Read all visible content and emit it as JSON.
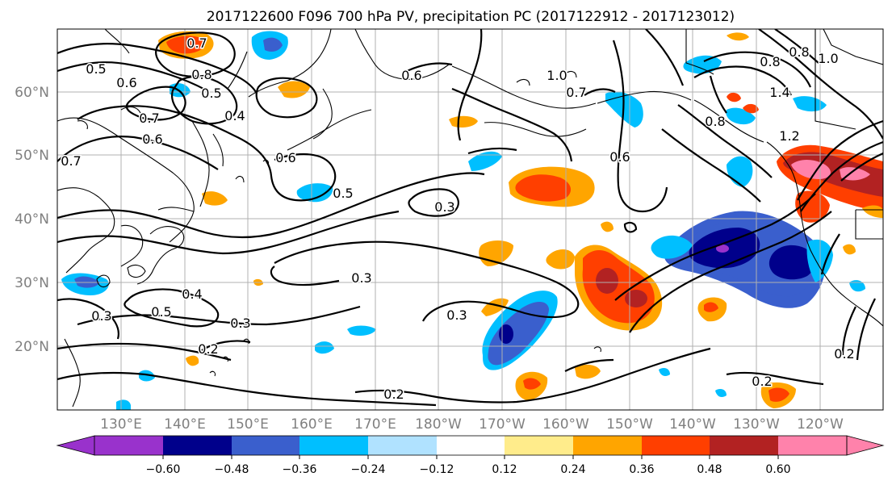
{
  "title": "2017122600 F096 700 hPa PV, precipitation PC (2017122912 - 2017123012)",
  "map": {
    "lat_labels": [
      "60°N",
      "50°N",
      "40°N",
      "30°N",
      "20°N"
    ],
    "lon_labels": [
      "130°E",
      "140°E",
      "150°E",
      "160°E",
      "170°E",
      "180°W",
      "170°W",
      "160°W",
      "150°W",
      "140°W",
      "130°W",
      "120°W"
    ],
    "gridlines": true
  },
  "colorbar": {
    "tick_labels": [
      "−0.60",
      "−0.48",
      "−0.36",
      "−0.24",
      "−0.12",
      "0.12",
      "0.24",
      "0.36",
      "0.48",
      "0.60"
    ],
    "colors": [
      "#9932CC",
      "#00008B",
      "#3A5FCD",
      "#00BFFF",
      "#B0E2FF",
      "#FFFFFF",
      "#FFEC8B",
      "#FFA500",
      "#FF3F00",
      "#B22222",
      "#FF82AB"
    ],
    "extend": "both"
  },
  "contour_labels": [
    {
      "text": "0.7"
    },
    {
      "text": "0.5"
    },
    {
      "text": "0.6"
    },
    {
      "text": "0.8"
    },
    {
      "text": "0.5"
    },
    {
      "text": "0.4"
    },
    {
      "text": "0.7"
    },
    {
      "text": "0.6"
    },
    {
      "text": "0.7"
    },
    {
      "text": "0.6"
    },
    {
      "text": "0.5"
    },
    {
      "text": "0.3"
    },
    {
      "text": "0.6"
    },
    {
      "text": "1.0"
    },
    {
      "text": "0.7"
    },
    {
      "text": "0.6"
    },
    {
      "text": "0.8"
    },
    {
      "text": "0.8"
    },
    {
      "text": "1.0"
    },
    {
      "text": "1.4"
    },
    {
      "text": "0.8"
    },
    {
      "text": "1.2"
    },
    {
      "text": "0.3"
    },
    {
      "text": "0.4"
    },
    {
      "text": "0.5"
    },
    {
      "text": "0.3"
    },
    {
      "text": "0.3"
    },
    {
      "text": "0.2"
    },
    {
      "text": "0.3"
    },
    {
      "text": "0.2"
    },
    {
      "text": "0.2"
    },
    {
      "text": "0.2"
    }
  ]
}
